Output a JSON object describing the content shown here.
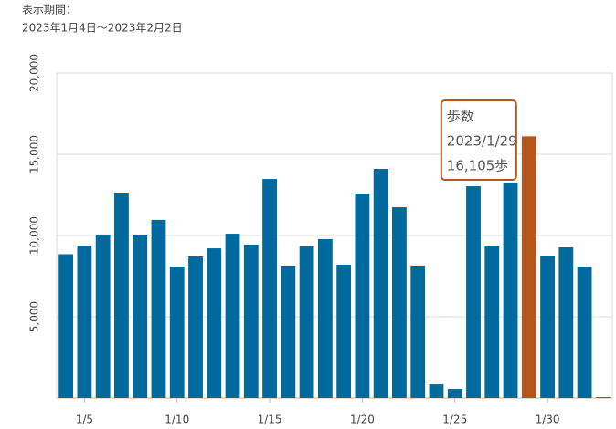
{
  "header": {
    "label": "表示期間：",
    "range": "2023年1月4日〜2023年2月2日"
  },
  "chart_data": {
    "type": "bar",
    "categories": [
      null,
      "1/5",
      null,
      null,
      null,
      null,
      "1/10",
      null,
      null,
      null,
      null,
      "1/15",
      null,
      null,
      null,
      null,
      "1/20",
      null,
      null,
      null,
      null,
      "1/25",
      null,
      null,
      null,
      null,
      "1/30",
      null,
      null,
      null
    ],
    "values": [
      8850,
      9380,
      10060,
      12640,
      10060,
      10960,
      8090,
      8710,
      9210,
      10110,
      9440,
      13480,
      8150,
      9330,
      9780,
      8200,
      12580,
      14100,
      11740,
      8150,
      840,
      560,
      13030,
      9330,
      13260,
      16105,
      8760,
      9270,
      8090,
      50
    ],
    "color": "#006a9e",
    "highlight_color": "#b5561f",
    "ylim": [
      0,
      20000
    ],
    "yticks": [
      {
        "value": 5000,
        "label": "5,000"
      },
      {
        "value": 10000,
        "label": "10,000"
      },
      {
        "value": 15000,
        "label": "15,000"
      },
      {
        "value": 20000,
        "label": "20,000"
      }
    ],
    "grid": true,
    "tooltip": {
      "category_index": 25,
      "title": "歩数",
      "date": "2023/1/29",
      "value_label": "16,105歩"
    }
  }
}
